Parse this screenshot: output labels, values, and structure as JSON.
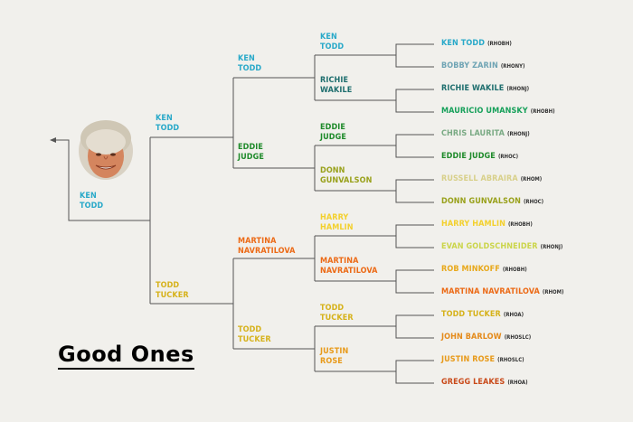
{
  "title": "Good Ones",
  "colors": {
    "ken": "#29a9c9",
    "bobby": "#6fa4b4",
    "richie": "#1e6e6e",
    "mauricio": "#16a05a",
    "chris": "#7aaa84",
    "eddie": "#1e8a2a",
    "russell": "#d8d08a",
    "donn": "#99a11b",
    "harry": "#f3d02c",
    "evan": "#cbd54a",
    "rob": "#e8a81a",
    "martina": "#ec6a16",
    "todd": "#d6b21b",
    "john": "#e48a1a",
    "justin": "#e89a1a",
    "gregg": "#c94a1a",
    "line": "#555555"
  },
  "round1": [
    {
      "name": "KEN TODD",
      "tag": "(RHOBH)",
      "color": "ken"
    },
    {
      "name": "BOBBY ZARIN",
      "tag": "(RHONY)",
      "color": "bobby"
    },
    {
      "name": "RICHIE WAKILE",
      "tag": "(RHONJ)",
      "color": "richie"
    },
    {
      "name": "MAURICIO UMANSKY",
      "tag": "(RHOBH)",
      "color": "mauricio"
    },
    {
      "name": "CHRIS LAURITA",
      "tag": "(RHONJ)",
      "color": "chris"
    },
    {
      "name": "EDDIE JUDGE",
      "tag": "(RHOC)",
      "color": "eddie"
    },
    {
      "name": "RUSSELL ABRAIRA",
      "tag": "(RHOM)",
      "color": "russell"
    },
    {
      "name": "DONN GUNVALSON",
      "tag": "(RHOC)",
      "color": "donn"
    },
    {
      "name": "HARRY HAMLIN",
      "tag": "(RHOBH)",
      "color": "harry"
    },
    {
      "name": "EVAN GOLDSCHNEIDER",
      "tag": "(RHONJ)",
      "color": "evan"
    },
    {
      "name": "ROB MINKOFF",
      "tag": "(RHOBH)",
      "color": "rob"
    },
    {
      "name": "MARTINA NAVRATILOVA",
      "tag": "(RHOM)",
      "color": "martina"
    },
    {
      "name": "TODD TUCKER",
      "tag": "(RHOA)",
      "color": "todd"
    },
    {
      "name": "JOHN BARLOW",
      "tag": "(RHOSLC)",
      "color": "john"
    },
    {
      "name": "JUSTIN ROSE",
      "tag": "(RHOSLC)",
      "color": "justin"
    },
    {
      "name": "GREGG LEAKES",
      "tag": "(RHOA)",
      "color": "gregg"
    }
  ],
  "round2": [
    {
      "line1": "KEN",
      "line2": "TODD",
      "color": "ken"
    },
    {
      "line1": "RICHIE",
      "line2": "WAKILE",
      "color": "richie"
    },
    {
      "line1": "EDDIE",
      "line2": "JUDGE",
      "color": "eddie"
    },
    {
      "line1": "DONN",
      "line2": "GUNVALSON",
      "color": "donn"
    },
    {
      "line1": "HARRY",
      "line2": "HAMLIN",
      "color": "harry"
    },
    {
      "line1": "MARTINA",
      "line2": "NAVRATILOVA",
      "color": "martina"
    },
    {
      "line1": "TODD",
      "line2": "TUCKER",
      "color": "todd"
    },
    {
      "line1": "JUSTIN",
      "line2": "ROSE",
      "color": "justin"
    }
  ],
  "round3": [
    {
      "line1": "KEN",
      "line2": "TODD",
      "color": "ken"
    },
    {
      "line1": "EDDIE",
      "line2": "JUDGE",
      "color": "eddie"
    },
    {
      "line1": "MARTINA",
      "line2": "NAVRATILOVA",
      "color": "martina"
    },
    {
      "line1": "TODD",
      "line2": "TUCKER",
      "color": "todd"
    }
  ],
  "round4": [
    {
      "line1": "KEN",
      "line2": "TODD",
      "color": "ken"
    },
    {
      "line1": "TODD",
      "line2": "TUCKER",
      "color": "todd"
    }
  ],
  "champion": {
    "line1": "KEN",
    "line2": "TODD",
    "color": "ken"
  }
}
